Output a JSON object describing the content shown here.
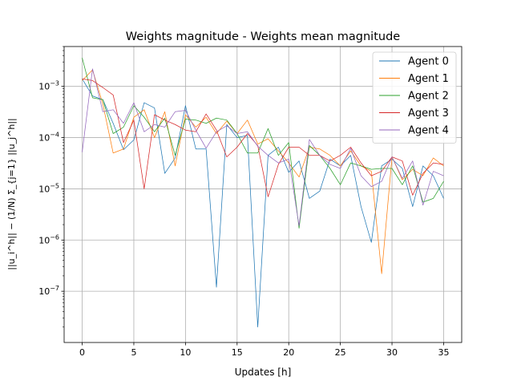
{
  "chart_data": {
    "type": "line",
    "title": "Weights magnitude - Weights mean magnitude",
    "xlabel": "Updates [h]",
    "ylabel": "||u_i^h|| − (1/N) Σ_{j=1} ||u_j^h||",
    "xlim": [
      -1.75,
      36.75
    ],
    "ylim": [
      1e-08,
      0.006
    ],
    "yscale": "log",
    "grid": true,
    "legend_position": "top-right",
    "x_ticks": [
      0,
      5,
      10,
      15,
      20,
      25,
      30,
      35
    ],
    "x_tick_labels": [
      "0",
      "5",
      "10",
      "15",
      "20",
      "25",
      "30",
      "35"
    ],
    "y_ticks": [
      1e-07,
      1e-06,
      1e-05,
      0.0001,
      0.001
    ],
    "y_tick_labels": [
      {
        "base": "10",
        "exp": "−7"
      },
      {
        "base": "10",
        "exp": "−6"
      },
      {
        "base": "10",
        "exp": "−5"
      },
      {
        "base": "10",
        "exp": "−4"
      },
      {
        "base": "10",
        "exp": "−3"
      }
    ],
    "x": [
      0,
      1,
      2,
      3,
      4,
      5,
      6,
      7,
      8,
      9,
      10,
      11,
      12,
      13,
      14,
      15,
      16,
      17,
      18,
      19,
      20,
      21,
      22,
      23,
      24,
      25,
      26,
      27,
      28,
      29,
      30,
      31,
      32,
      33,
      34,
      35
    ],
    "series": [
      {
        "name": "Agent 0",
        "color": "#1f77b4",
        "values": [
          0.0014,
          0.00065,
          0.00055,
          0.00019,
          5.8e-05,
          9e-05,
          0.00048,
          0.00038,
          2e-05,
          4e-05,
          0.00042,
          6e-05,
          6e-05,
          1.2e-07,
          0.00018,
          0.0001,
          0.00011,
          2e-08,
          4.5e-05,
          6.5e-05,
          2.1e-05,
          3.5e-05,
          6.5e-06,
          9e-06,
          3.8e-05,
          2.8e-05,
          4.5e-05,
          4.5e-06,
          9e-07,
          2.8e-05,
          3.8e-05,
          2.5e-05,
          4.5e-06,
          2.8e-05,
          1.8e-05,
          6.5e-06
        ]
      },
      {
        "name": "Agent 1",
        "color": "#ff7f0e",
        "values": [
          0.0013,
          0.0021,
          0.00045,
          5e-05,
          6e-05,
          0.00025,
          0.00035,
          0.0001,
          0.00032,
          2.8e-05,
          0.00028,
          0.00016,
          0.00025,
          0.00012,
          0.00021,
          0.00012,
          0.00022,
          7.5e-05,
          9.5e-05,
          5.5e-05,
          3.2e-05,
          1.7e-05,
          6.5e-05,
          6e-05,
          4.5e-05,
          2.8e-05,
          5.5e-05,
          2.8e-05,
          2.2e-05,
          2.2e-07,
          4.2e-05,
          1.5e-05,
          2.4e-05,
          1.8e-05,
          4e-05,
          2.8e-05
        ]
      },
      {
        "name": "Agent 2",
        "color": "#2ca02c",
        "values": [
          0.0036,
          0.0006,
          0.00055,
          0.00012,
          0.00016,
          0.00042,
          0.00025,
          0.00013,
          0.00024,
          4.5e-05,
          0.00023,
          0.00022,
          0.00019,
          0.00024,
          0.00022,
          0.00012,
          5e-05,
          5e-05,
          0.00015,
          4.5e-05,
          8e-05,
          1.7e-06,
          7e-05,
          4.5e-05,
          2.5e-05,
          1.2e-05,
          3.2e-05,
          2.8e-05,
          2.4e-05,
          2.5e-05,
          2.5e-05,
          1.2e-05,
          2.8e-05,
          5.5e-06,
          6.5e-06,
          1.4e-05
        ]
      },
      {
        "name": "Agent 3",
        "color": "#d62728",
        "values": [
          0.0014,
          0.0013,
          0.00095,
          0.00068,
          8e-05,
          0.00022,
          1e-05,
          0.00028,
          0.00022,
          0.00018,
          0.00014,
          0.00013,
          0.00029,
          0.00014,
          4.2e-05,
          6.5e-05,
          0.00012,
          7e-05,
          7e-06,
          3e-05,
          6.5e-05,
          6.5e-05,
          4.5e-05,
          4.5e-05,
          3.5e-05,
          4.5e-05,
          6.5e-05,
          3.2e-05,
          1.8e-05,
          2.2e-05,
          4.2e-05,
          3.5e-05,
          7.5e-06,
          2e-05,
          3.2e-05,
          3e-05
        ]
      },
      {
        "name": "Agent 4",
        "color": "#9467bd",
        "values": [
          5.2e-05,
          0.0022,
          0.00032,
          0.00035,
          0.00019,
          0.00048,
          0.00013,
          0.00018,
          0.00016,
          0.00032,
          0.00034,
          0.00014,
          6.2e-05,
          0.00013,
          0.00017,
          0.00012,
          0.00013,
          6.8e-05,
          4.5e-05,
          3.2e-05,
          3.8e-05,
          1.9e-06,
          9.2e-05,
          4.5e-05,
          3e-05,
          2.5e-05,
          6.2e-05,
          1.8e-05,
          1.1e-05,
          1.4e-05,
          4.2e-05,
          1.6e-05,
          3.5e-05,
          4.8e-06,
          2.2e-05,
          1.8e-05
        ]
      }
    ]
  }
}
